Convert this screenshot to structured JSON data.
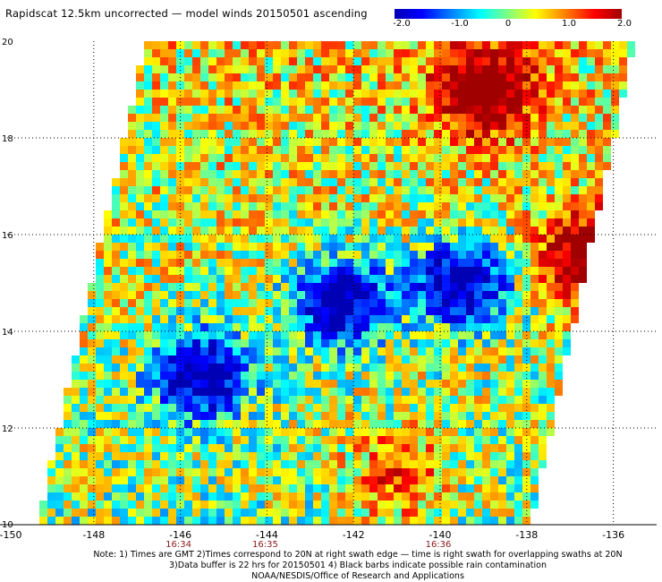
{
  "title": "Rapidscat 12.5km uncorrected — model winds 20150501 ascending",
  "colorbar": {
    "ticks": [
      "-2.0",
      "-1.0",
      "0",
      "1.0",
      "2.0"
    ],
    "colors": [
      "#0000b4",
      "#0000ff",
      "#0080ff",
      "#00ffff",
      "#ffff00",
      "#ff8000",
      "#ff0000",
      "#a00000"
    ],
    "range": [
      -2.0,
      2.0
    ]
  },
  "chart_data": {
    "type": "heatmap",
    "xlabel": "",
    "ylabel": "",
    "xlim": [
      -150,
      -135
    ],
    "ylim": [
      10,
      20
    ],
    "x_ticks": [
      "-150",
      "-148",
      "-146",
      "-144",
      "-142",
      "-140",
      "-138",
      "-136"
    ],
    "y_ticks": [
      "20",
      "18",
      "16",
      "14",
      "12",
      "10"
    ],
    "time_labels": [
      {
        "lon": -146,
        "text": "16:34"
      },
      {
        "lon": -144,
        "text": "16:35"
      },
      {
        "lon": -140,
        "text": "16:36"
      }
    ],
    "value_range": [
      -2.0,
      2.0
    ],
    "swath_corners": [
      [
        -149.3,
        10
      ],
      [
        -137.9,
        10
      ],
      [
        -135.5,
        20
      ],
      [
        -146.8,
        20
      ]
    ],
    "features": [
      {
        "description": "strong negative (blue) cluster",
        "lon": -145.5,
        "lat": 13.1,
        "value": -2.0
      },
      {
        "description": "strong negative (blue) cluster",
        "lon": -142.3,
        "lat": 14.6,
        "value": -2.0
      },
      {
        "description": "strong negative (blue) cluster",
        "lon": -139.5,
        "lat": 15.0,
        "value": -2.0
      },
      {
        "description": "strong positive (red) area",
        "lon": -136.5,
        "lat": 15.5,
        "value": 2.0
      },
      {
        "description": "strong positive (red) area",
        "lon": -139.0,
        "lat": 19.0,
        "value": 2.0
      },
      {
        "description": "positive (orange) band",
        "lon": -141.0,
        "lat": 11.0,
        "value": 1.0
      }
    ]
  },
  "notes": [
    "Note: 1) Times are GMT 2)Times correspond to 20N at right swath edge — time is right swath for overlapping swaths at 20N",
    "3)Data buffer is 22 hrs for 20150501 4) Black barbs indicate possible rain contamination",
    "NOAA/NESDIS/Office of Research and Applications"
  ]
}
